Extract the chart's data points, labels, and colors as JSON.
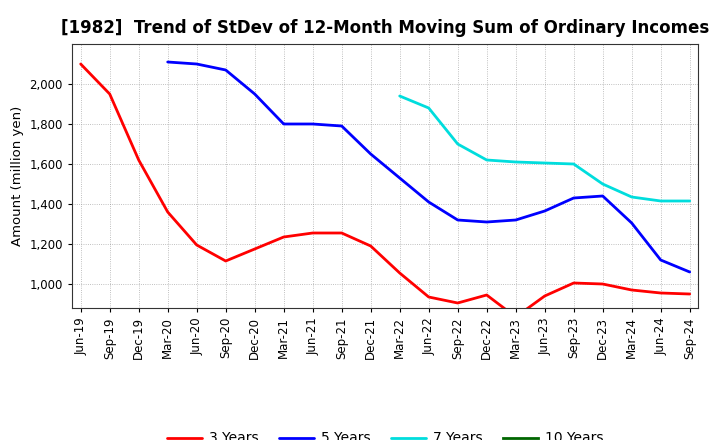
{
  "title": "[1982]  Trend of StDev of 12-Month Moving Sum of Ordinary Incomes",
  "ylabel": "Amount (million yen)",
  "background_color": "#ffffff",
  "grid_color": "#888888",
  "x_labels": [
    "Jun-19",
    "Sep-19",
    "Dec-19",
    "Mar-20",
    "Jun-20",
    "Sep-20",
    "Dec-20",
    "Mar-21",
    "Jun-21",
    "Sep-21",
    "Dec-21",
    "Mar-22",
    "Jun-22",
    "Sep-22",
    "Dec-22",
    "Mar-23",
    "Jun-23",
    "Sep-23",
    "Dec-23",
    "Mar-24",
    "Jun-24",
    "Sep-24"
  ],
  "series": {
    "3 Years": {
      "color": "#ff0000",
      "data_x": [
        "Jun-19",
        "Sep-19",
        "Dec-19",
        "Mar-20",
        "Jun-20",
        "Sep-20",
        "Dec-20",
        "Mar-21",
        "Jun-21",
        "Sep-21",
        "Dec-21",
        "Mar-22",
        "Jun-22",
        "Sep-22",
        "Dec-22",
        "Mar-23",
        "Jun-23",
        "Sep-23",
        "Dec-23",
        "Mar-24",
        "Jun-24",
        "Sep-24"
      ],
      "data_y": [
        2100,
        1950,
        1620,
        1360,
        1195,
        1115,
        1175,
        1235,
        1255,
        1255,
        1190,
        1055,
        935,
        905,
        945,
        835,
        940,
        1005,
        1000,
        970,
        955,
        950
      ]
    },
    "5 Years": {
      "color": "#0000ff",
      "data_x": [
        "Jun-19",
        "Sep-19",
        "Dec-19",
        "Mar-20",
        "Jun-20",
        "Sep-20",
        "Dec-20",
        "Mar-21",
        "Jun-21",
        "Sep-21",
        "Dec-21",
        "Mar-22",
        "Jun-22",
        "Sep-22",
        "Dec-22",
        "Mar-23",
        "Jun-23",
        "Sep-23",
        "Dec-23",
        "Mar-24",
        "Jun-24",
        "Sep-24"
      ],
      "data_y": [
        null,
        null,
        null,
        2110,
        2100,
        2070,
        1950,
        1800,
        1800,
        1790,
        1650,
        1530,
        1410,
        1320,
        1310,
        1320,
        1365,
        1430,
        1440,
        1305,
        1120,
        1060
      ]
    },
    "7 Years": {
      "color": "#00dddd",
      "data_x": [
        "Mar-22",
        "Jun-22",
        "Sep-22",
        "Dec-22",
        "Mar-23",
        "Jun-23",
        "Sep-23",
        "Dec-23",
        "Mar-24",
        "Jun-24",
        "Sep-24"
      ],
      "data_y": [
        1940,
        1880,
        1700,
        1620,
        1610,
        1605,
        1600,
        1500,
        1435,
        1415,
        1415
      ]
    },
    "10 Years": {
      "color": "#006600",
      "data_x": [],
      "data_y": []
    }
  },
  "ylim": [
    880,
    2200
  ],
  "yticks": [
    1000,
    1200,
    1400,
    1600,
    1800,
    2000
  ],
  "title_fontsize": 12,
  "legend_fontsize": 10,
  "tick_fontsize": 8.5,
  "label_fontsize": 9.5
}
